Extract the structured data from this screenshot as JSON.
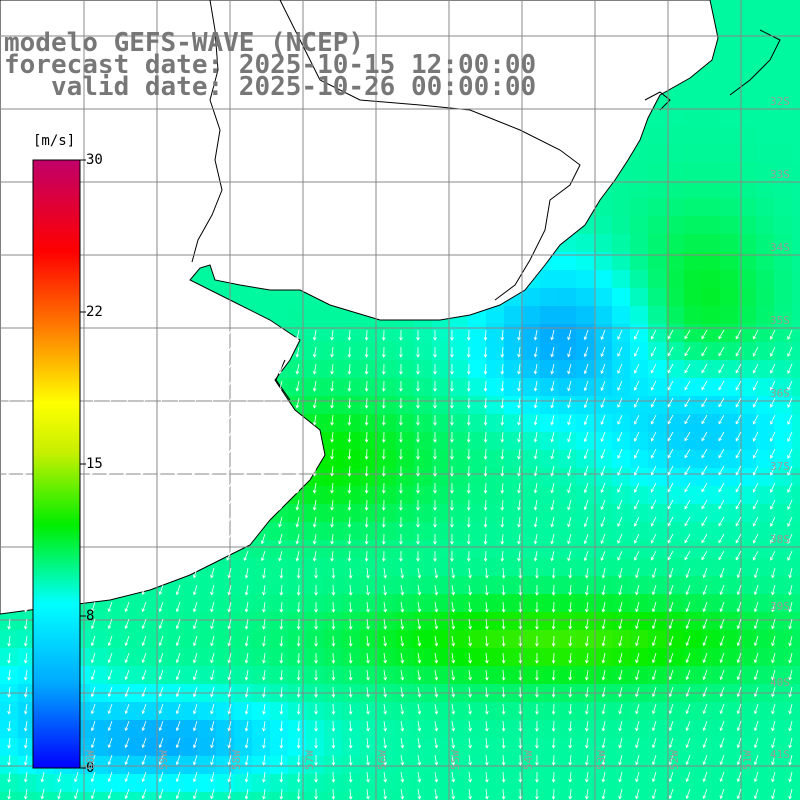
{
  "title": {
    "line1": "modelo GEFS-WAVE (NCEP)",
    "line2": "forecast date: 2025-10-15 12:00:00",
    "line3": "   valid date: 2025-10-26 00:00:00"
  },
  "colorbar": {
    "unit": "[m/s]",
    "ticks": [
      "30",
      "22",
      "15",
      "8",
      "0"
    ],
    "tick_values": [
      30,
      22,
      15,
      8,
      0
    ],
    "range": [
      0,
      30
    ],
    "colors": [
      "#0000ff",
      "#00aaff",
      "#00ffff",
      "#00ee00",
      "#ffff00",
      "#ff8000",
      "#ff0000",
      "#c0006a"
    ]
  },
  "map": {
    "land_color": "#ffffff",
    "coast_color": "#000000",
    "grid_color": "#888888",
    "arrow_color": "#ffffff",
    "lat_labels": [
      "32S",
      "33S",
      "34S",
      "35S",
      "36S",
      "37S",
      "38S",
      "39S",
      "40S",
      "41S"
    ],
    "lon_labels": [
      "60W",
      "59W",
      "58W",
      "57W",
      "56W",
      "55W",
      "54W",
      "53W",
      "52W",
      "51W"
    ]
  }
}
